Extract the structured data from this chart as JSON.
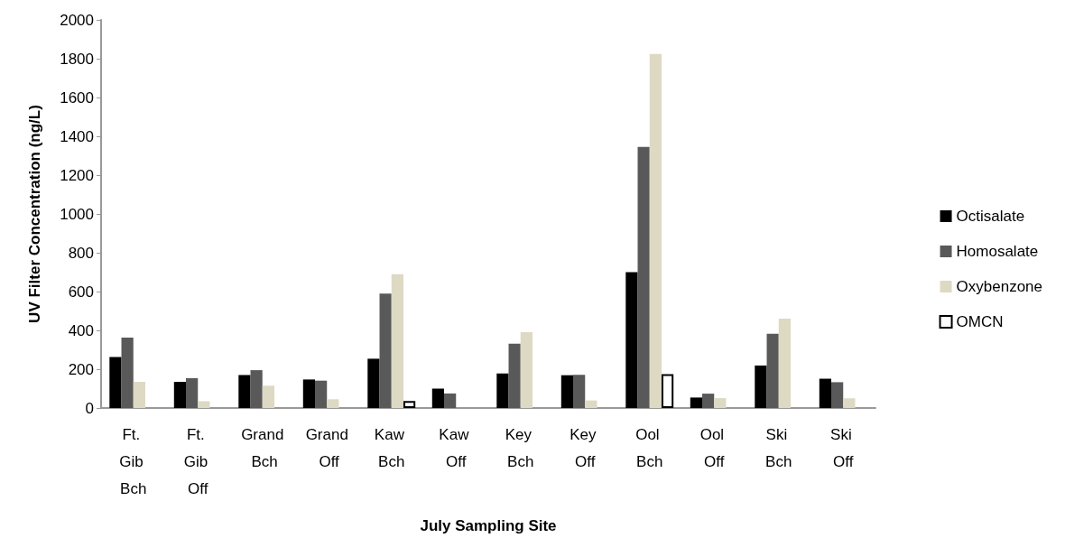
{
  "chart_data": {
    "type": "bar",
    "xlabel": "July Sampling Site",
    "ylabel": "UV Filter Concentration (ng/L)",
    "categories": [
      "Ft. Gib Bch",
      "Ft. Gib Off",
      "Grand Bch",
      "Grand Off",
      "Kaw Bch",
      "Kaw Off",
      "Key Bch",
      "Key Off",
      "Ool Bch",
      "Ool Off",
      "Ski Bch",
      "Ski Off"
    ],
    "series": [
      {
        "name": "Octisalate",
        "color": "#000000",
        "values": [
          263,
          135,
          170,
          147,
          254,
          100,
          178,
          169,
          700,
          54,
          219,
          151
        ]
      },
      {
        "name": "Homosalate",
        "color": "#595959",
        "values": [
          363,
          154,
          195,
          141,
          590,
          75,
          331,
          171,
          1345,
          74,
          382,
          133
        ]
      },
      {
        "name": "Oxybenzone",
        "color": "#ddd9c3",
        "values": [
          135,
          35,
          115,
          45,
          690,
          null,
          391,
          39,
          1825,
          51,
          461,
          50
        ]
      },
      {
        "name": "OMCN",
        "color": "#ffffff",
        "values": [
          null,
          null,
          null,
          null,
          36,
          null,
          null,
          null,
          175,
          null,
          null,
          null
        ]
      }
    ],
    "ylim": [
      0,
      2000
    ],
    "yticks": [
      0,
      200,
      400,
      600,
      800,
      1000,
      1200,
      1400,
      1600,
      1800,
      2000
    ],
    "grid": false,
    "legend": "right"
  }
}
